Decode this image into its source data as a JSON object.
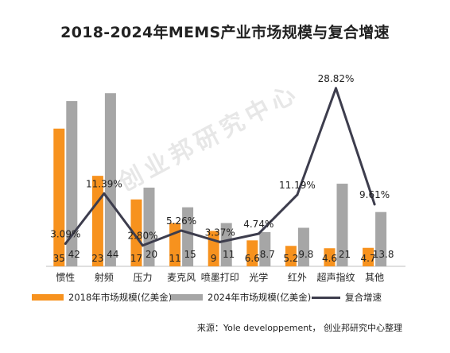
{
  "chart_data": {
    "type": "bar",
    "title": "2018-2024年MEMS产业市场规模与复合增速",
    "categories": [
      "惯性",
      "射频",
      "压力",
      "麦克风",
      "喷墨打印",
      "光学",
      "红外",
      "超声指纹",
      "其他"
    ],
    "series": [
      {
        "name": "2018年市场规模(亿美金)",
        "type": "bar",
        "color": "#f7921e",
        "values": [
          35,
          23,
          17,
          11,
          9,
          6.6,
          5.2,
          4.6,
          4.7
        ],
        "labels": [
          "35",
          "23",
          "17",
          "11",
          "9",
          "6.6",
          "5.2",
          "4.6",
          "4.7"
        ]
      },
      {
        "name": "2024年市场规模(亿美金)",
        "type": "bar",
        "color": "#a6a6a6",
        "values": [
          42,
          44,
          20,
          15,
          11,
          8.7,
          9.8,
          21,
          13.8
        ],
        "labels": [
          "42",
          "44",
          "20",
          "15",
          "11",
          "8.7",
          "9.8",
          "21",
          "13.8"
        ]
      },
      {
        "name": "复合增速",
        "type": "line",
        "color": "#3d3d4d",
        "values": [
          3.09,
          11.39,
          2.8,
          5.26,
          3.37,
          4.74,
          11.19,
          28.82,
          9.61
        ],
        "labels": [
          "3.09%",
          "11.39%",
          "2.80%",
          "5.26%",
          "3.37%",
          "4.74%",
          "11.19%",
          "28.82%",
          "9.61%"
        ]
      }
    ],
    "legend_position": "bottom",
    "grid": false
  },
  "source": "来源：Yole developpement， 创业邦研究中心整理",
  "watermark": "创业邦研究中心"
}
